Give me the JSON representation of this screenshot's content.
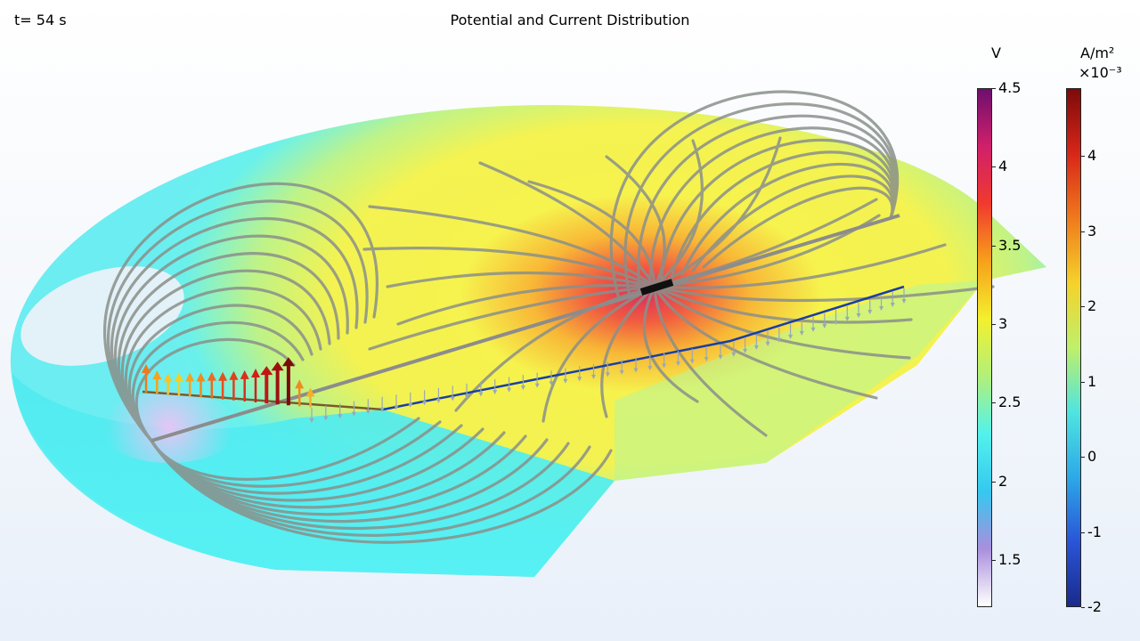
{
  "header": {
    "time": "t= 54 s",
    "title": "Potential and Current Distribution"
  },
  "colorbars": [
    {
      "id": "potential",
      "unit": "V",
      "multiplier": "",
      "range": [
        1.2,
        4.5
      ],
      "ticks": [
        "4.5",
        "4",
        "3.5",
        "3",
        "2.5",
        "2",
        "1.5"
      ],
      "tick_values": [
        4.5,
        4,
        3.5,
        3,
        2.5,
        2,
        1.5
      ],
      "colors": [
        "#6e0f6e",
        "#d0206a",
        "#f03a2e",
        "#f7a11a",
        "#f3f02e",
        "#b2f07a",
        "#52f2ec",
        "#36c8ef",
        "#a98fdd",
        "#ffffff"
      ]
    },
    {
      "id": "current_density",
      "unit": "A/m²",
      "multiplier": "×10⁻³",
      "range": [
        -2,
        4.9
      ],
      "ticks": [
        "4",
        "3",
        "2",
        "1",
        "0",
        "-1",
        "-2"
      ],
      "tick_values": [
        4,
        3,
        2,
        1,
        0,
        -1,
        -2
      ],
      "colors": [
        "#7d0a0a",
        "#d8261a",
        "#f07a1c",
        "#f5d22a",
        "#bff06a",
        "#4fe4e0",
        "#2da9e8",
        "#2a55d8",
        "#1a2a8a"
      ]
    }
  ],
  "icons": {
    "streamline_arrow": "arrowhead-icon",
    "current_arrow": "vector-arrow-icon"
  }
}
